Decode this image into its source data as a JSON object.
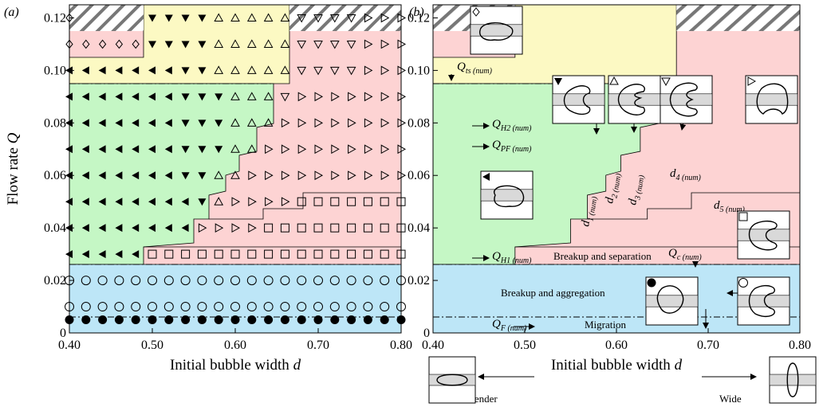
{
  "chart_data": [
    {
      "type": "scatter",
      "panel": "(a)",
      "xlabel": {
        "text": "Initial bubble width ",
        "var": "d"
      },
      "ylabel": {
        "text": "Flow rate ",
        "var": "Q"
      },
      "xlim": [
        0.4,
        0.8
      ],
      "ylim": [
        0,
        0.125
      ],
      "xticks": [
        {
          "value": 0.4,
          "label": "0.40"
        },
        {
          "value": 0.5,
          "label": "0.50"
        },
        {
          "value": 0.6,
          "label": "0.60"
        },
        {
          "value": 0.7,
          "label": "0.70"
        },
        {
          "value": 0.8,
          "label": "0.80"
        }
      ],
      "yticks": [
        0,
        0.02,
        0.04,
        0.06,
        0.08,
        {
          "value": 0.1,
          "label": "0.10"
        },
        0.12
      ],
      "rows": [
        {
          "Q": 0.005,
          "groups": [
            {
              "marker": "circle-filled",
              "d": [
                0.4,
                0.42,
                0.44,
                0.46,
                0.48,
                0.5,
                0.52,
                0.54,
                0.56,
                0.58,
                0.6,
                0.62,
                0.64,
                0.66,
                0.68,
                0.7,
                0.72,
                0.74,
                0.76,
                0.78,
                0.8
              ]
            }
          ]
        },
        {
          "Q": 0.01,
          "groups": [
            {
              "marker": "circle",
              "d": [
                0.4,
                0.42,
                0.44,
                0.46,
                0.48,
                0.5,
                0.52,
                0.54,
                0.56,
                0.58,
                0.6,
                0.62,
                0.64,
                0.66,
                0.68,
                0.7,
                0.72,
                0.74,
                0.76,
                0.78,
                0.8
              ]
            }
          ]
        },
        {
          "Q": 0.02,
          "groups": [
            {
              "marker": "circle",
              "d": [
                0.4,
                0.42,
                0.44,
                0.46,
                0.48,
                0.5,
                0.52,
                0.54,
                0.56,
                0.58,
                0.6,
                0.62,
                0.64,
                0.66,
                0.68,
                0.7,
                0.72,
                0.74,
                0.76,
                0.78,
                0.8
              ]
            }
          ]
        },
        {
          "Q": 0.03,
          "groups": [
            {
              "marker": "left-filled",
              "d": [
                0.4,
                0.42,
                0.44,
                0.46,
                0.48
              ]
            },
            {
              "marker": "square",
              "d": [
                0.5,
                0.52,
                0.54,
                0.56,
                0.58,
                0.6,
                0.62,
                0.64,
                0.66,
                0.68,
                0.7,
                0.72,
                0.74,
                0.76,
                0.78,
                0.8
              ]
            }
          ]
        },
        {
          "Q": 0.04,
          "groups": [
            {
              "marker": "left-filled",
              "d": [
                0.4,
                0.42,
                0.44,
                0.46,
                0.48,
                0.5,
                0.52,
                0.54
              ]
            },
            {
              "marker": "right",
              "d": [
                0.56,
                0.58,
                0.6,
                0.62
              ]
            },
            {
              "marker": "square",
              "d": [
                0.64,
                0.66,
                0.68,
                0.7,
                0.72,
                0.74,
                0.76,
                0.78,
                0.8
              ]
            }
          ]
        },
        {
          "Q": 0.05,
          "groups": [
            {
              "marker": "left-filled",
              "d": [
                0.4,
                0.42,
                0.44,
                0.46,
                0.48,
                0.5,
                0.52,
                0.54
              ]
            },
            {
              "marker": "down-filled",
              "d": [
                0.56
              ]
            },
            {
              "marker": "up",
              "d": [
                0.58
              ]
            },
            {
              "marker": "right",
              "d": [
                0.6,
                0.62,
                0.64,
                0.66
              ]
            },
            {
              "marker": "square",
              "d": [
                0.68,
                0.7,
                0.72,
                0.74,
                0.76,
                0.78,
                0.8
              ]
            }
          ]
        },
        {
          "Q": 0.06,
          "groups": [
            {
              "marker": "left-filled",
              "d": [
                0.4,
                0.42,
                0.44,
                0.46,
                0.48,
                0.5,
                0.52
              ]
            },
            {
              "marker": "down-filled",
              "d": [
                0.54,
                0.56
              ]
            },
            {
              "marker": "up",
              "d": [
                0.58,
                0.6
              ]
            },
            {
              "marker": "right",
              "d": [
                0.62,
                0.64,
                0.66,
                0.68,
                0.7,
                0.72,
                0.74,
                0.76,
                0.78,
                0.8
              ]
            }
          ]
        },
        {
          "Q": 0.07,
          "groups": [
            {
              "marker": "left-filled",
              "d": [
                0.4,
                0.42,
                0.44,
                0.46,
                0.48,
                0.5,
                0.52
              ]
            },
            {
              "marker": "down-filled",
              "d": [
                0.54,
                0.56,
                0.58
              ]
            },
            {
              "marker": "up",
              "d": [
                0.6,
                0.62
              ]
            },
            {
              "marker": "right",
              "d": [
                0.64,
                0.66,
                0.68,
                0.7,
                0.72,
                0.74,
                0.76,
                0.78,
                0.8
              ]
            }
          ]
        },
        {
          "Q": 0.08,
          "groups": [
            {
              "marker": "left-filled",
              "d": [
                0.4,
                0.42,
                0.44,
                0.46,
                0.48,
                0.5,
                0.52
              ]
            },
            {
              "marker": "down-filled",
              "d": [
                0.54,
                0.56,
                0.58
              ]
            },
            {
              "marker": "up",
              "d": [
                0.6,
                0.62,
                0.64
              ]
            },
            {
              "marker": "right",
              "d": [
                0.66,
                0.68,
                0.7,
                0.72,
                0.74,
                0.76,
                0.78,
                0.8
              ]
            }
          ]
        },
        {
          "Q": 0.09,
          "groups": [
            {
              "marker": "left-filled",
              "d": [
                0.4,
                0.42,
                0.44,
                0.46,
                0.48,
                0.5,
                0.52
              ]
            },
            {
              "marker": "down-filled",
              "d": [
                0.54,
                0.56,
                0.58
              ]
            },
            {
              "marker": "up",
              "d": [
                0.6,
                0.62,
                0.64
              ]
            },
            {
              "marker": "down",
              "d": [
                0.66
              ]
            },
            {
              "marker": "right",
              "d": [
                0.68,
                0.7,
                0.72,
                0.74,
                0.76,
                0.78,
                0.8
              ]
            }
          ]
        },
        {
          "Q": 0.1,
          "groups": [
            {
              "marker": "left-filled",
              "d": [
                0.4,
                0.42,
                0.44,
                0.46,
                0.48,
                0.5,
                0.52
              ]
            },
            {
              "marker": "down-filled",
              "d": [
                0.54,
                0.56
              ]
            },
            {
              "marker": "up",
              "d": [
                0.58,
                0.6,
                0.62,
                0.64,
                0.66
              ]
            },
            {
              "marker": "down",
              "d": [
                0.68,
                0.7,
                0.72,
                0.74
              ]
            },
            {
              "marker": "right",
              "d": [
                0.76,
                0.78,
                0.8
              ]
            }
          ]
        },
        {
          "Q": 0.11,
          "groups": [
            {
              "marker": "diamond",
              "d": [
                0.4,
                0.42,
                0.44,
                0.46,
                0.48
              ]
            },
            {
              "marker": "down-filled",
              "d": [
                0.5,
                0.52,
                0.54,
                0.56
              ]
            },
            {
              "marker": "up",
              "d": [
                0.58,
                0.6,
                0.62,
                0.64,
                0.66
              ]
            },
            {
              "marker": "down",
              "d": [
                0.68,
                0.7,
                0.72,
                0.74
              ]
            },
            {
              "marker": "right",
              "d": [
                0.76,
                0.78,
                0.8
              ]
            }
          ]
        },
        {
          "Q": 0.12,
          "groups": [
            {
              "marker": "diamond",
              "d": [
                0.4
              ]
            },
            {
              "marker": "down-filled",
              "d": [
                0.5,
                0.52,
                0.54,
                0.56
              ]
            },
            {
              "marker": "up",
              "d": [
                0.58,
                0.6,
                0.62,
                0.64,
                0.66
              ]
            },
            {
              "marker": "down",
              "d": [
                0.68,
                0.7,
                0.72,
                0.74
              ]
            },
            {
              "marker": "right",
              "d": [
                0.76,
                0.78,
                0.8
              ]
            }
          ]
        }
      ]
    },
    {
      "type": "regime-map",
      "panel": "(b)",
      "xlabel": {
        "text": "Initial bubble width ",
        "var": "d"
      },
      "xlim": [
        0.4,
        0.8
      ],
      "ylim": [
        0,
        0.125
      ],
      "xticks": [
        {
          "value": 0.4,
          "label": "0.40"
        },
        {
          "value": 0.5,
          "label": "0.50"
        },
        {
          "value": 0.6,
          "label": "0.60"
        },
        {
          "value": 0.7,
          "label": "0.70"
        },
        {
          "value": 0.8,
          "label": "0.80"
        }
      ],
      "yticks": [
        0,
        0.02,
        0.04,
        0.06,
        0.08,
        {
          "value": 0.1,
          "label": "0.10"
        },
        0.12
      ],
      "annotations": [
        {
          "var": "Q",
          "sub": "ts (num)"
        },
        {
          "var": "Q",
          "sub": "H2 (num)"
        },
        {
          "var": "Q",
          "sub": "PF (num)"
        },
        {
          "var": "Q",
          "sub": "H1 (num)"
        },
        {
          "var": "Q",
          "sub": "c (num)"
        },
        {
          "var": "Q",
          "sub": "F (num)"
        },
        {
          "var": "d",
          "sub": "1 (num)"
        },
        {
          "var": "d",
          "sub": "2 (num)"
        },
        {
          "var": "d",
          "sub": "3 (num)"
        },
        {
          "var": "d",
          "sub": "4 (num)"
        },
        {
          "var": "d",
          "sub": "5 (num)"
        }
      ],
      "regimes": [
        "Breakup and separation",
        "Breakup and aggregation",
        "Migration"
      ],
      "shapes": [
        "Slender",
        "Wide"
      ]
    }
  ]
}
